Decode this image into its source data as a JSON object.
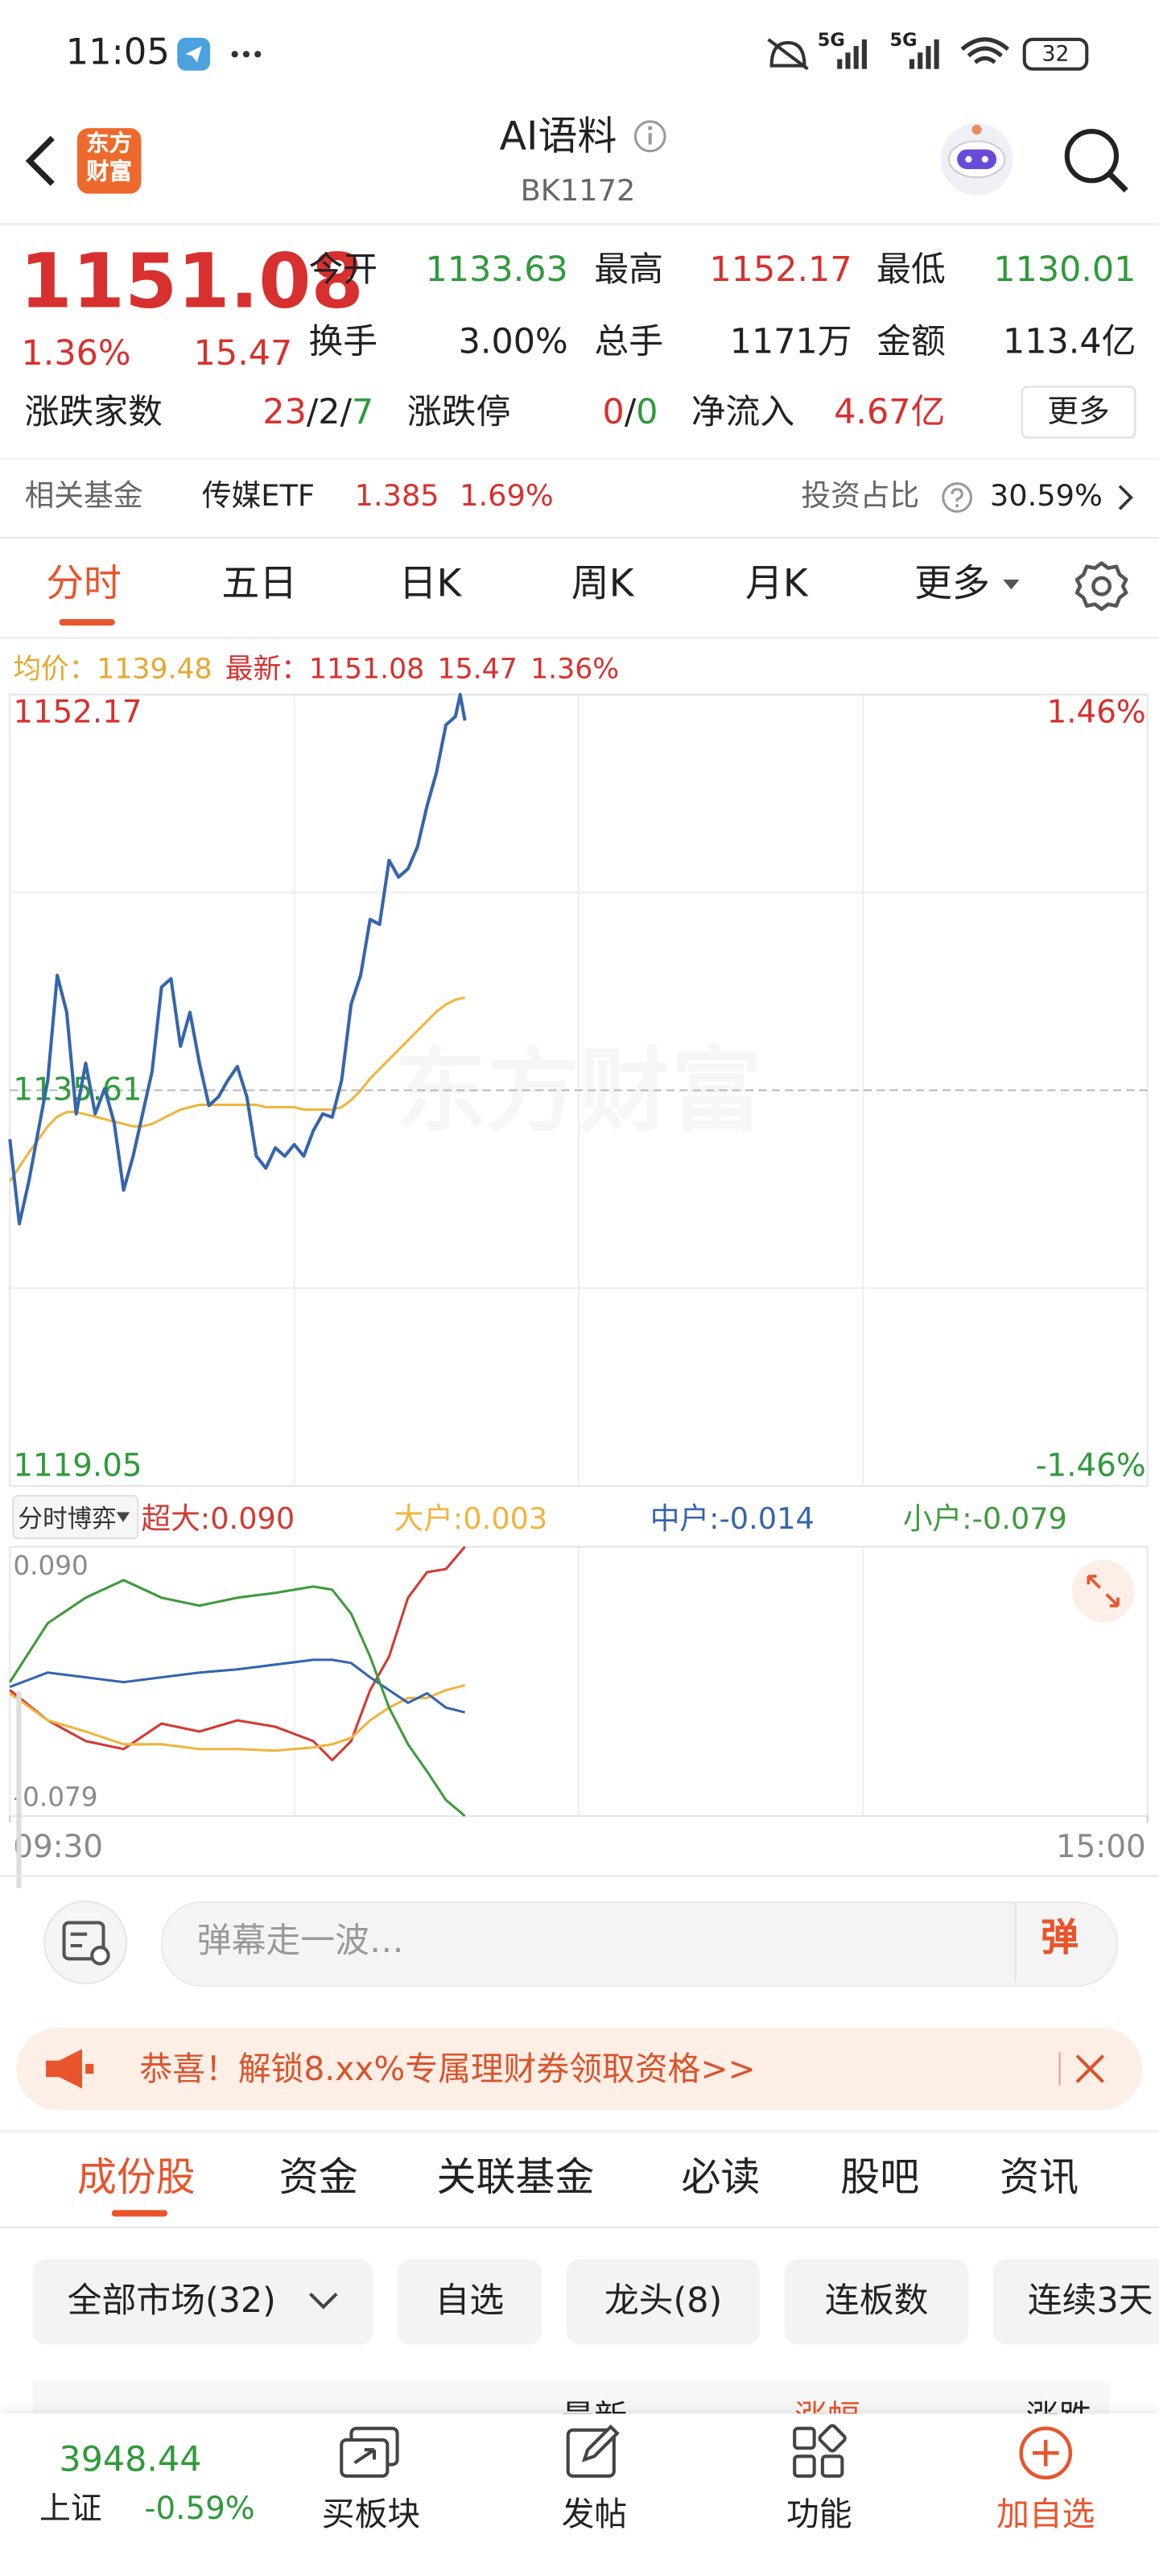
{
  "status_bar": {
    "time": "11:05",
    "network": [
      "5G",
      "5G"
    ],
    "battery": "32"
  },
  "header": {
    "logo": [
      "东方",
      "财富"
    ],
    "title": "AI语料",
    "code": "BK1172"
  },
  "quote": {
    "price": "1151.08",
    "change_pct": "1.36%",
    "change": "15.47",
    "stats": [
      {
        "label": "今开",
        "value": "1133.63"
      },
      {
        "label": "最高",
        "value": "1152.17"
      },
      {
        "label": "最低",
        "value": "1130.01"
      },
      {
        "label": "换手",
        "value": "3.00%"
      },
      {
        "label": "总手",
        "value": "1171万"
      },
      {
        "label": "金额",
        "value": "113.4亿"
      }
    ],
    "breadth": {
      "label": "涨跌家数",
      "parts": [
        "23",
        "/",
        "2",
        "/",
        "7"
      ]
    },
    "limit": {
      "label": "涨跌停",
      "parts": [
        "0",
        "/",
        "0"
      ]
    },
    "net_inflow": {
      "label": "净流入",
      "value": "4.67亿"
    },
    "more": "更多"
  },
  "fund": {
    "label": "相关基金",
    "name": "传媒ETF",
    "price": "1.385",
    "change_pct": "1.69%",
    "ratio_label": "投资占比",
    "ratio": "30.59%"
  },
  "chart_tabs": [
    "分时",
    "五日",
    "日K",
    "周K",
    "月K",
    "更多"
  ],
  "chart_data": [
    {
      "type": "line",
      "watermark": "东方财富",
      "change": "15.47",
      "change_pct": "1.36%",
      "x": [
        0,
        2,
        4,
        8,
        10,
        12,
        14,
        16,
        18,
        20,
        22,
        24,
        26,
        28,
        30,
        32,
        34,
        36,
        38,
        40,
        42,
        44,
        46,
        48,
        50,
        52,
        54,
        56,
        58,
        60,
        62,
        64,
        66,
        68,
        70,
        72,
        74,
        76,
        78,
        80,
        82,
        84,
        86,
        88,
        90,
        92,
        94,
        95,
        96
      ],
      "xlim": [
        0,
        240
      ],
      "ylim": [
        1119.05,
        1152.17
      ],
      "yticks": [
        1152.17,
        1135.61,
        1119.05
      ],
      "y2lim": [
        -1.46,
        1.46
      ],
      "y2ticks": [
        {
          "value": 1.46,
          "label": "1.46%"
        },
        {
          "value": -1.46,
          "label": "-1.46%"
        }
      ],
      "series": [
        {
          "name": "均价：",
          "latest": "1139.48",
          "color": "#f0b43c",
          "values": [
            1131.79,
            1132.4,
            1133.0,
            1134.1,
            1134.5,
            1134.7,
            1134.7,
            1134.6,
            1134.5,
            1134.4,
            1134.3,
            1134.2,
            1134.1,
            1134.1,
            1134.2,
            1134.4,
            1134.6,
            1134.8,
            1134.9,
            1135.0,
            1135.0,
            1135.0,
            1135.0,
            1135.0,
            1135.0,
            1135.0,
            1134.9,
            1134.9,
            1134.9,
            1134.9,
            1134.8,
            1134.8,
            1134.8,
            1134.8,
            1134.9,
            1135.2,
            1135.6,
            1136.1,
            1136.5,
            1136.9,
            1137.3,
            1137.7,
            1138.1,
            1138.5,
            1138.9,
            1139.2,
            1139.4,
            1139.45,
            1139.48
          ]
        },
        {
          "name": "最新：",
          "latest": "1151.08",
          "color": "#3565ad",
          "values": [
            1133.56,
            1130.02,
            1131.79,
            1136.03,
            1140.42,
            1138.87,
            1134.62,
            1136.74,
            1134.62,
            1135.68,
            1134.26,
            1131.43,
            1132.85,
            1134.62,
            1136.39,
            1139.93,
            1140.28,
            1137.45,
            1138.87,
            1136.74,
            1134.97,
            1135.33,
            1136.03,
            1136.6,
            1135.33,
            1132.85,
            1132.35,
            1133.2,
            1132.85,
            1133.34,
            1132.85,
            1133.91,
            1134.62,
            1134.48,
            1136.03,
            1139.22,
            1140.42,
            1142.76,
            1142.55,
            1145.23,
            1144.53,
            1144.88,
            1145.8,
            1147.5,
            1148.91,
            1150.9,
            1151.25,
            1152.17,
            1151.08
          ]
        }
      ]
    },
    {
      "type": "line",
      "label": "分时博弈",
      "x": [
        0,
        8,
        16,
        24,
        32,
        40,
        48,
        56,
        64,
        68,
        72,
        76,
        80,
        84,
        88,
        92,
        96
      ],
      "xlim": [
        0,
        240
      ],
      "xticks": [
        {
          "value": 0,
          "label": "09:30"
        },
        {
          "value": 240,
          "label": "15:00"
        }
      ],
      "ylim": [
        -0.079,
        0.09
      ],
      "yticks": [
        {
          "value": 0.09,
          "label": "0.090"
        },
        -0.079
      ],
      "series": [
        {
          "name": "超大:",
          "latest": "0.090",
          "color": "#d23a33",
          "values": [
            0,
            -0.019,
            -0.032,
            -0.037,
            -0.021,
            -0.026,
            -0.019,
            -0.023,
            -0.032,
            -0.044,
            -0.032,
            0,
            0.021,
            0.058,
            0.074,
            0.076,
            0.09
          ]
        },
        {
          "name": "大户:",
          "latest": "0.003",
          "color": "#f0b43c",
          "values": [
            -0.002,
            -0.019,
            -0.026,
            -0.034,
            -0.034,
            -0.037,
            -0.037,
            -0.038,
            -0.036,
            -0.034,
            -0.03,
            -0.019,
            -0.011,
            -0.005,
            -0.005,
            0,
            0.003
          ]
        },
        {
          "name": "中户:",
          "latest": "-0.014",
          "color": "#3565ad",
          "values": [
            0.002,
            0.011,
            0.008,
            0.005,
            0.008,
            0.011,
            0.013,
            0.016,
            0.019,
            0.019,
            0.017,
            0.008,
            0,
            -0.008,
            -0.002,
            -0.011,
            -0.014
          ]
        },
        {
          "name": "小户:",
          "latest": "-0.079",
          "color": "#3f9a3c",
          "values": [
            0.005,
            0.042,
            0.058,
            0.069,
            0.058,
            0.053,
            0.058,
            0.061,
            0.065,
            0.063,
            0.048,
            0.021,
            -0.011,
            -0.034,
            -0.051,
            -0.069,
            -0.079
          ]
        }
      ]
    }
  ],
  "comment": {
    "placeholder": "弹幕走一波…",
    "button": "弹"
  },
  "banner": "恭喜！解锁8.xx%专属理财券领取资格>>",
  "section_tabs": [
    "成份股",
    "资金",
    "关联基金",
    "必读",
    "股吧",
    "资讯"
  ],
  "filters": [
    "全部市场(32)",
    "自选",
    "龙头(8)",
    "连板数",
    "连续3天"
  ],
  "table_header": [
    "最新",
    "涨幅",
    "涨跌"
  ],
  "bottom_nav": {
    "index_value": "3948.44",
    "index_name": "上证",
    "index_change": "-0.59%",
    "items": [
      "买板块",
      "发帖",
      "功能",
      "加自选"
    ]
  }
}
